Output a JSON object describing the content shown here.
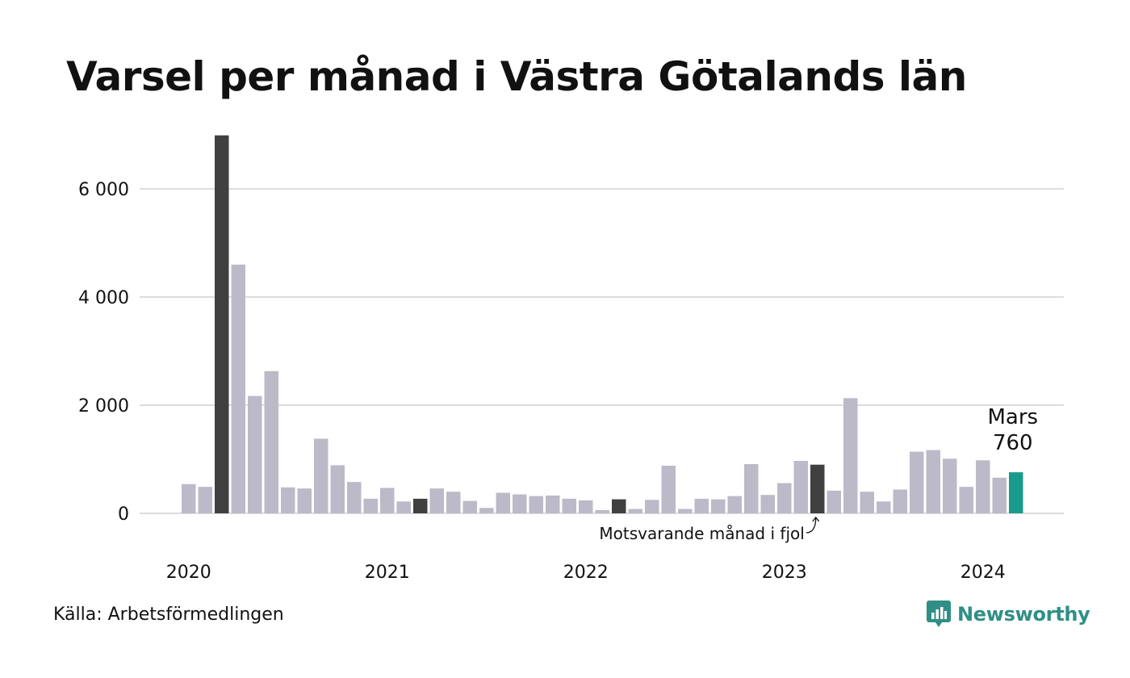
{
  "title": "Varsel per månad i Västra Götalands län",
  "source": "Källa: Arbetsförmedlingen",
  "brand": {
    "name": "Newsworthy",
    "icon": "newsworthy-logo-icon"
  },
  "colors": {
    "bar": "#bcbac8",
    "highlight": "#404040",
    "current": "#1a9a8c",
    "grid": "#dddddd",
    "brand": "#2f8f86"
  },
  "chart_data": {
    "type": "bar",
    "title": "Varsel per månad i Västra Götalands län",
    "xlabel": "",
    "ylabel": "",
    "ylim": [
      0,
      7000
    ],
    "y_ticks": [
      0,
      2000,
      4000,
      6000
    ],
    "y_tick_labels": [
      "0",
      "2 000",
      "4 000",
      "6 000"
    ],
    "x_tick_labels": [
      "2020",
      "2021",
      "2022",
      "2023",
      "2024"
    ],
    "grid": true,
    "categories": [
      "2020-01",
      "2020-02",
      "2020-03",
      "2020-04",
      "2020-05",
      "2020-06",
      "2020-07",
      "2020-08",
      "2020-09",
      "2020-10",
      "2020-11",
      "2020-12",
      "2021-01",
      "2021-02",
      "2021-03",
      "2021-04",
      "2021-05",
      "2021-06",
      "2021-07",
      "2021-08",
      "2021-09",
      "2021-10",
      "2021-11",
      "2021-12",
      "2022-01",
      "2022-02",
      "2022-03",
      "2022-04",
      "2022-05",
      "2022-06",
      "2022-07",
      "2022-08",
      "2022-09",
      "2022-10",
      "2022-11",
      "2022-12",
      "2023-01",
      "2023-02",
      "2023-03",
      "2023-04",
      "2023-05",
      "2023-06",
      "2023-07",
      "2023-08",
      "2023-09",
      "2023-10",
      "2023-11",
      "2023-12",
      "2024-01",
      "2024-02",
      "2024-03"
    ],
    "values": [
      540,
      490,
      6990,
      4600,
      2170,
      2630,
      480,
      460,
      1380,
      890,
      580,
      270,
      470,
      220,
      270,
      460,
      400,
      230,
      100,
      380,
      350,
      320,
      330,
      270,
      240,
      60,
      260,
      80,
      250,
      880,
      80,
      270,
      260,
      320,
      910,
      340,
      560,
      970,
      900,
      420,
      2130,
      400,
      220,
      440,
      1140,
      1170,
      1010,
      490,
      980,
      660,
      760
    ],
    "highlight_indices": [
      2,
      14,
      26,
      38
    ],
    "current_index": 50,
    "annotations": {
      "current_month": "Mars",
      "current_value": "760",
      "last_year": "Motsvarande månad i fjol"
    }
  }
}
